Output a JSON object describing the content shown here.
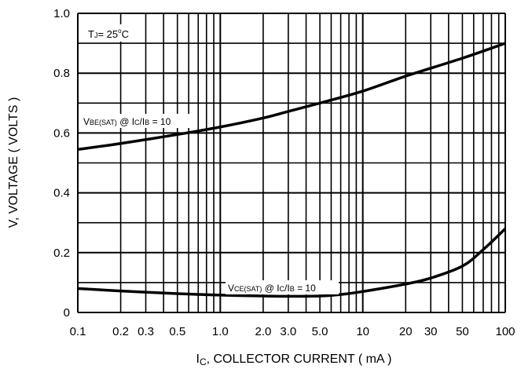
{
  "chart_data": {
    "type": "line",
    "xscale": "log",
    "xlim": [
      0.1,
      100
    ],
    "ylim": [
      0,
      1.0
    ],
    "grid": true,
    "xlabel_main": "I",
    "xlabel_sub": "C",
    "xlabel_rest": ", COLLECTOR CURRENT ( mA )",
    "ylabel": "V, VOLTAGE ( VOLTS )",
    "x_ticks": [
      {
        "v": 0.1,
        "label": "0.1"
      },
      {
        "v": 0.2,
        "label": "0.2"
      },
      {
        "v": 0.3,
        "label": "0.3"
      },
      {
        "v": 0.5,
        "label": "0.5"
      },
      {
        "v": 1.0,
        "label": "1.0"
      },
      {
        "v": 2.0,
        "label": "2.0"
      },
      {
        "v": 3.0,
        "label": "3.0"
      },
      {
        "v": 5.0,
        "label": "5.0"
      },
      {
        "v": 10,
        "label": "10"
      },
      {
        "v": 20,
        "label": "20"
      },
      {
        "v": 30,
        "label": "30"
      },
      {
        "v": 50,
        "label": "50"
      },
      {
        "v": 100,
        "label": "100"
      }
    ],
    "y_ticks": [
      {
        "v": 0,
        "label": "0"
      },
      {
        "v": 0.2,
        "label": "0.2"
      },
      {
        "v": 0.4,
        "label": "0.4"
      },
      {
        "v": 0.6,
        "label": "0.6"
      },
      {
        "v": 0.8,
        "label": "0.8"
      },
      {
        "v": 1.0,
        "label": "1.0"
      }
    ],
    "y_minor": [
      0.1,
      0.3,
      0.5,
      0.7,
      0.9
    ],
    "temperature": {
      "prefix": "T",
      "sub": "J",
      "value": "= 25",
      "sup": "o",
      "unit": "C"
    },
    "series": [
      {
        "label": {
          "a": "V",
          "b": "BE(SAT)",
          "c": " @ I",
          "d": "C",
          "e": "/I",
          "f": "B",
          "g": " = 10"
        },
        "points": [
          [
            0.1,
            0.545
          ],
          [
            0.2,
            0.565
          ],
          [
            0.5,
            0.595
          ],
          [
            1.0,
            0.62
          ],
          [
            2.0,
            0.65
          ],
          [
            3.0,
            0.672
          ],
          [
            5.0,
            0.7
          ],
          [
            10,
            0.74
          ],
          [
            20,
            0.79
          ],
          [
            50,
            0.85
          ],
          [
            100,
            0.9
          ]
        ]
      },
      {
        "label": {
          "a": "V",
          "b": "CE(SAT)",
          "c": " @ I",
          "d": "C",
          "e": "/I",
          "f": "B",
          "g": " = 10"
        },
        "points": [
          [
            0.1,
            0.08
          ],
          [
            0.2,
            0.072
          ],
          [
            0.5,
            0.063
          ],
          [
            1.0,
            0.058
          ],
          [
            2.0,
            0.055
          ],
          [
            3.0,
            0.054
          ],
          [
            5.0,
            0.055
          ],
          [
            7,
            0.06
          ],
          [
            10,
            0.07
          ],
          [
            20,
            0.095
          ],
          [
            30,
            0.115
          ],
          [
            50,
            0.155
          ],
          [
            70,
            0.21
          ],
          [
            100,
            0.28
          ]
        ]
      }
    ]
  }
}
